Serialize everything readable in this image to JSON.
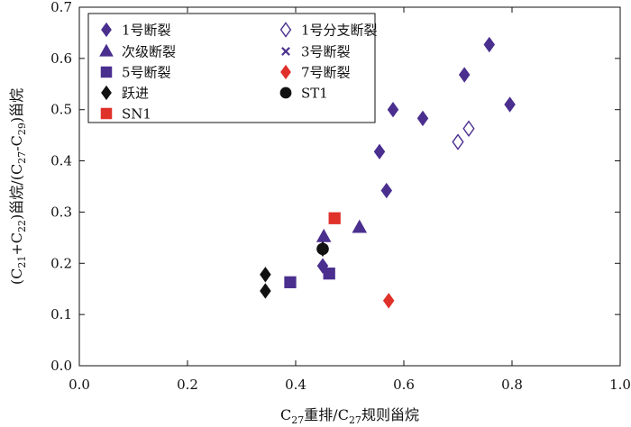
{
  "chart_data": {
    "type": "scatter",
    "xlim": [
      0.0,
      1.0
    ],
    "ylim": [
      0.0,
      0.7
    ],
    "x_ticks": [
      "0.0",
      "0.2",
      "0.4",
      "0.6",
      "0.8",
      "1.0"
    ],
    "y_ticks": [
      "0.0",
      "0.1",
      "0.2",
      "0.3",
      "0.4",
      "0.5",
      "0.6",
      "0.7"
    ],
    "xlabel": {
      "parts": [
        {
          "t": "C",
          "sub": false
        },
        {
          "t": "27",
          "sub": true
        },
        {
          "t": "重排/C",
          "sub": false
        },
        {
          "t": "27",
          "sub": true
        },
        {
          "t": "规则甾烷",
          "sub": false
        }
      ]
    },
    "ylabel": {
      "parts": [
        {
          "t": "(C",
          "sub": false
        },
        {
          "t": "21",
          "sub": true
        },
        {
          "t": "+C",
          "sub": false
        },
        {
          "t": "22",
          "sub": true
        },
        {
          "t": ")甾烷/(C",
          "sub": false
        },
        {
          "t": "27",
          "sub": true
        },
        {
          "t": "-C",
          "sub": false
        },
        {
          "t": "29",
          "sub": true
        },
        {
          "t": ")甾烷",
          "sub": false
        }
      ]
    },
    "grid": false,
    "legend_position": "top-left",
    "series": [
      {
        "name": "1号断裂",
        "marker": "diamond",
        "filled": true,
        "color": "#4a2f8f",
        "points": [
          [
            0.45,
            0.195
          ],
          [
            0.555,
            0.418
          ],
          [
            0.568,
            0.342
          ],
          [
            0.58,
            0.5
          ],
          [
            0.635,
            0.483
          ],
          [
            0.712,
            0.568
          ],
          [
            0.758,
            0.627
          ],
          [
            0.796,
            0.51
          ]
        ]
      },
      {
        "name": "1号分支断裂",
        "marker": "diamond",
        "filled": false,
        "color": "#4a2f8f",
        "points": [
          [
            0.7,
            0.437
          ],
          [
            0.72,
            0.463
          ]
        ]
      },
      {
        "name": "次级断裂",
        "marker": "triangle",
        "filled": true,
        "color": "#4a2f8f",
        "points": [
          [
            0.452,
            0.252
          ],
          [
            0.518,
            0.27
          ]
        ]
      },
      {
        "name": "3号断裂",
        "marker": "x",
        "filled": false,
        "color": "#4a2f8f",
        "points": []
      },
      {
        "name": "5号断裂",
        "marker": "square",
        "filled": true,
        "color": "#4a2f8f",
        "points": [
          [
            0.39,
            0.163
          ],
          [
            0.462,
            0.18
          ]
        ]
      },
      {
        "name": "7号断裂",
        "marker": "diamond",
        "filled": true,
        "color": "#e0302a",
        "points": [
          [
            0.572,
            0.127
          ]
        ]
      },
      {
        "name": "跃进",
        "marker": "diamond",
        "filled": true,
        "color": "#111111",
        "points": [
          [
            0.344,
            0.178
          ],
          [
            0.344,
            0.146
          ],
          [
            0.45,
            0.228
          ]
        ]
      },
      {
        "name": "ST1",
        "marker": "circle",
        "filled": true,
        "color": "#111111",
        "points": [
          [
            0.45,
            0.228
          ]
        ]
      },
      {
        "name": "SN1",
        "marker": "square",
        "filled": true,
        "color": "#e0302a",
        "points": [
          [
            0.472,
            0.288
          ]
        ]
      }
    ]
  }
}
